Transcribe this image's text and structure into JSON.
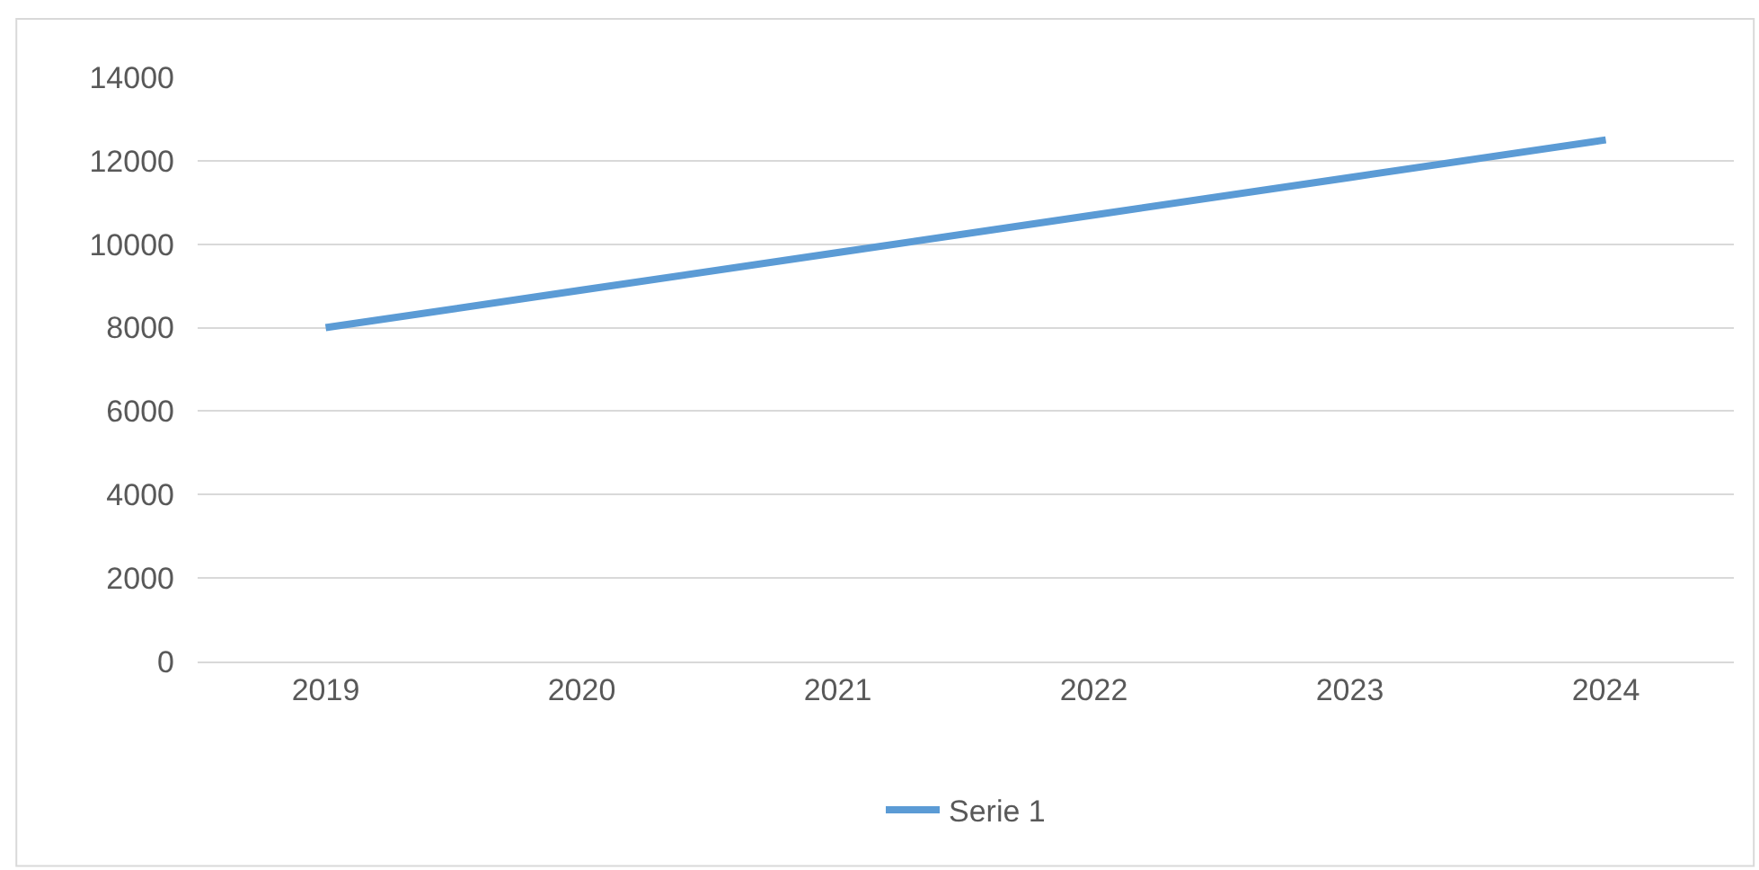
{
  "chart_data": {
    "type": "line",
    "categories": [
      "2019",
      "2020",
      "2021",
      "2022",
      "2023",
      "2024"
    ],
    "series": [
      {
        "name": "Serie 1",
        "color": "#5b9bd5",
        "values": [
          8000,
          8900,
          9800,
          10700,
          11600,
          12500
        ]
      }
    ],
    "ylim": [
      0,
      14000
    ],
    "yticks": [
      0,
      2000,
      4000,
      6000,
      8000,
      10000,
      12000,
      14000
    ],
    "grid": "y",
    "legend": "bottom",
    "marker": "none",
    "line_style": "solid"
  }
}
